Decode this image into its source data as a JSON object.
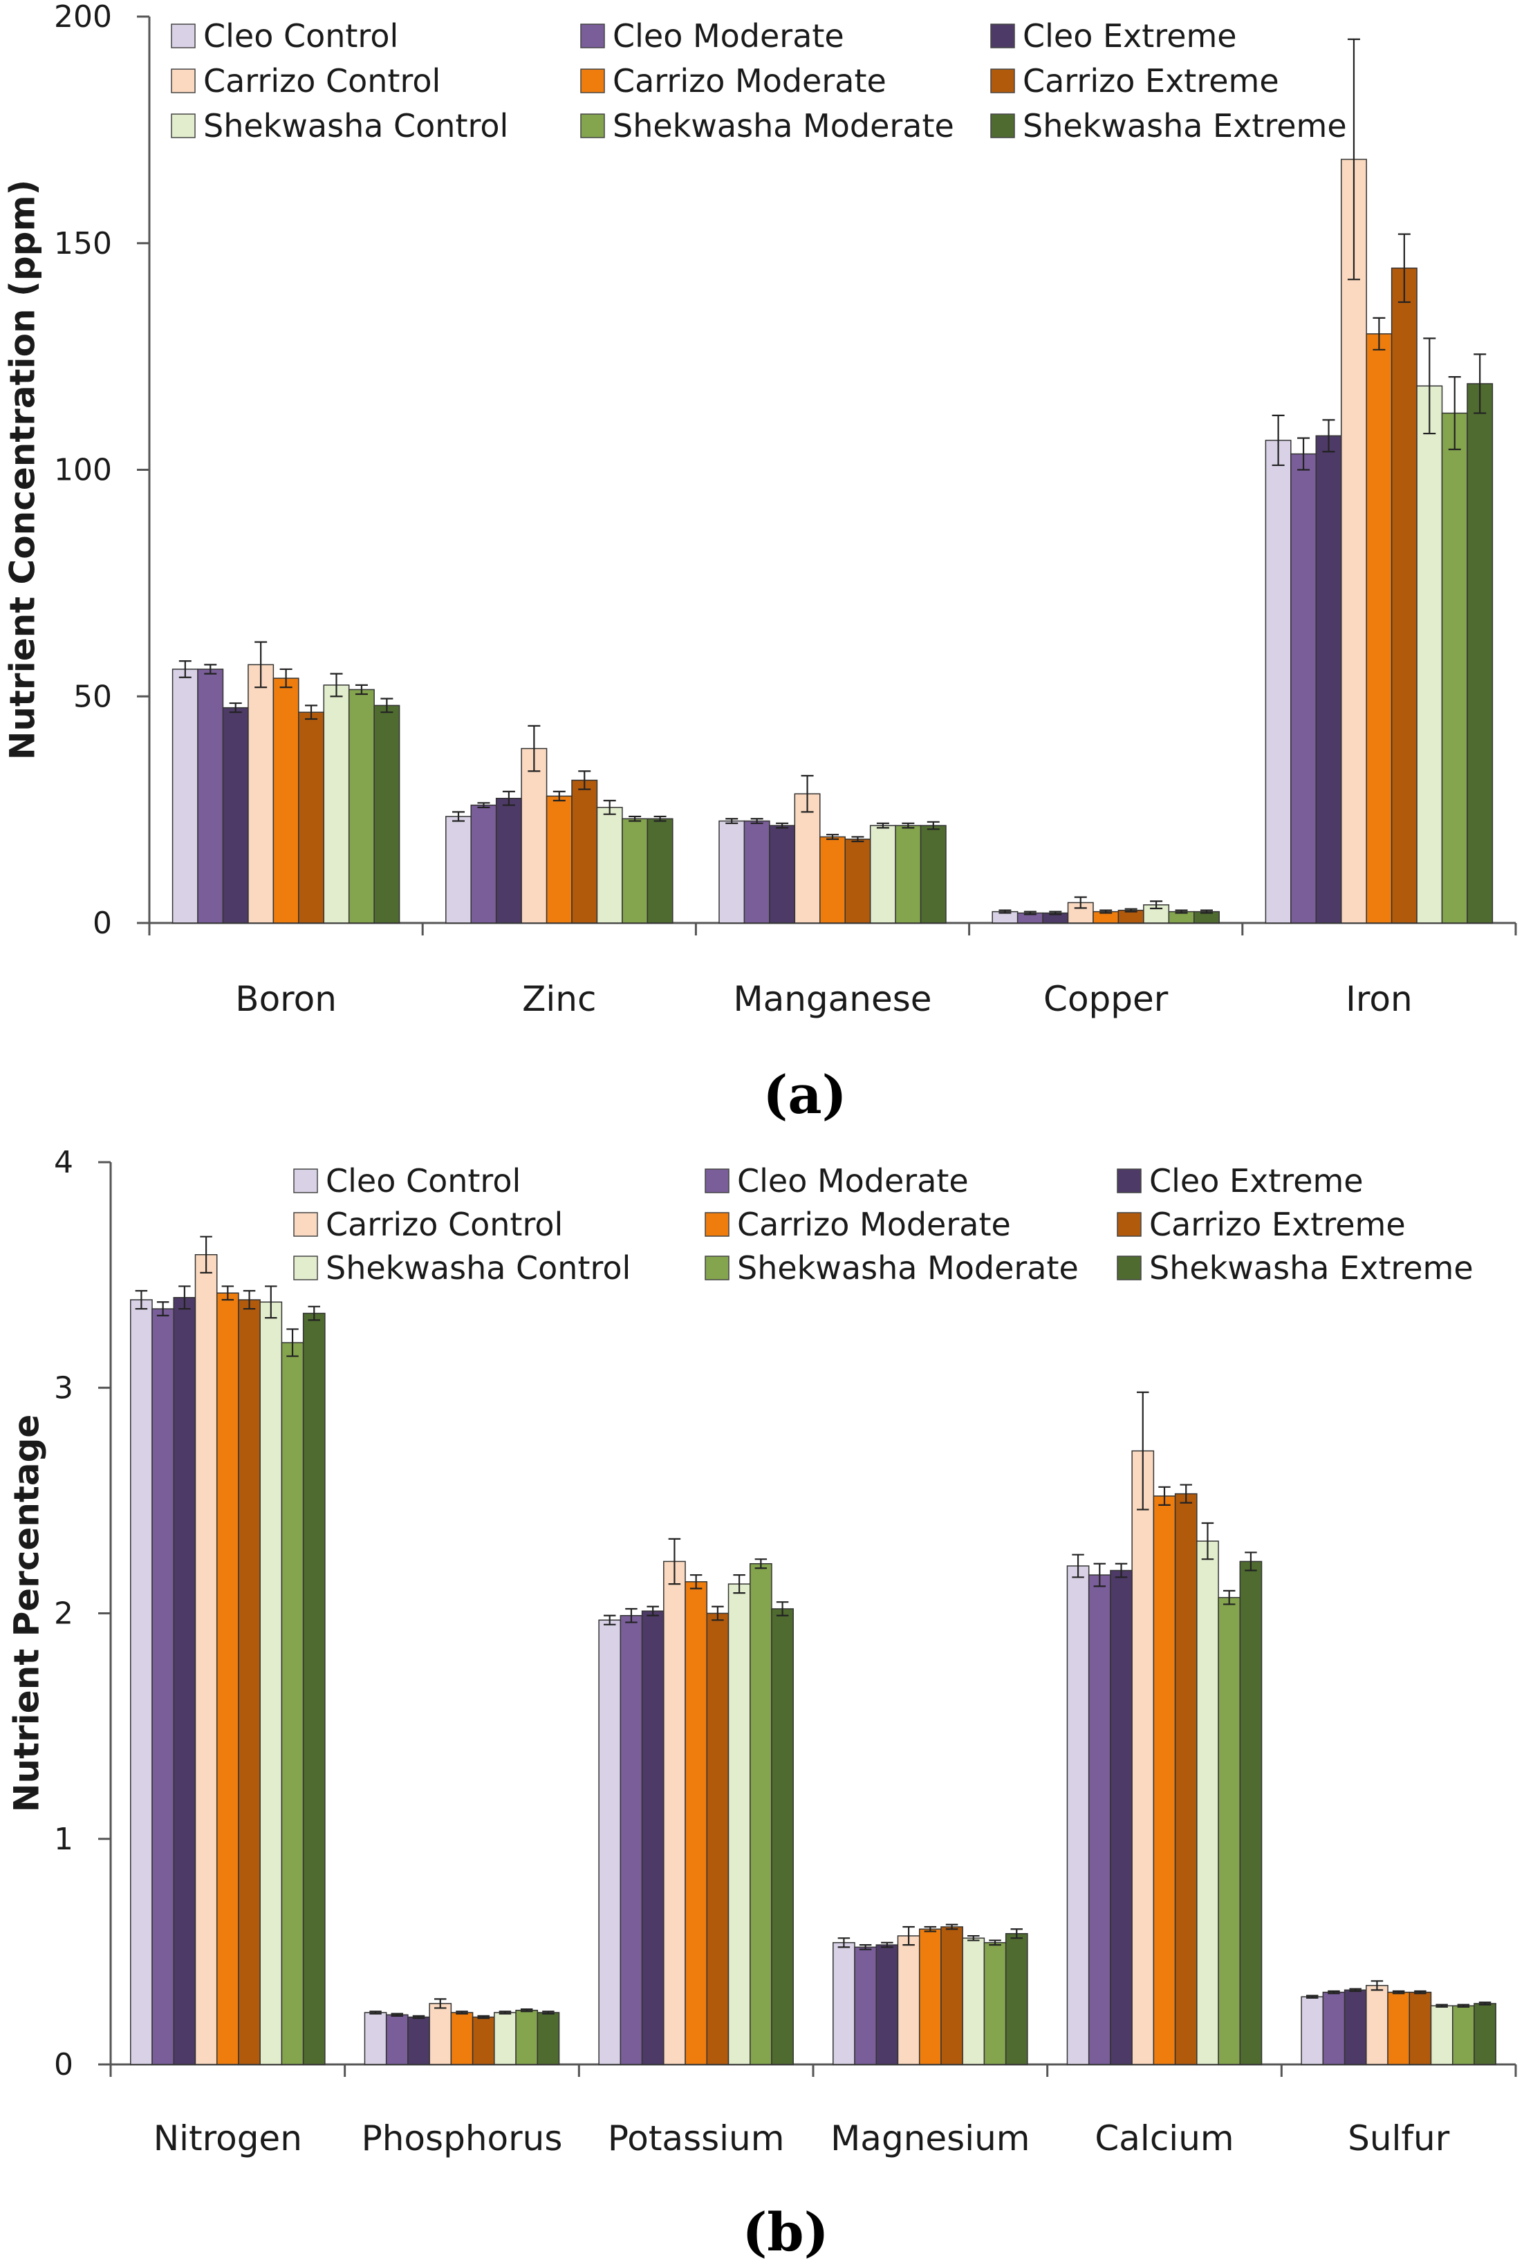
{
  "series_styles": [
    {
      "name": "Cleo Control",
      "color": "#d9d2e6"
    },
    {
      "name": "Cleo Moderate",
      "color": "#7a5e9a"
    },
    {
      "name": "Cleo Extreme",
      "color": "#4d3a66"
    },
    {
      "name": "Carrizo Control",
      "color": "#fad9c0"
    },
    {
      "name": "Carrizo Moderate",
      "color": "#ef7d0e"
    },
    {
      "name": "Carrizo Extreme",
      "color": "#b25a0c"
    },
    {
      "name": "Shekwasha Control",
      "color": "#e2edcd"
    },
    {
      "name": "Shekwasha Moderate",
      "color": "#84a54e"
    },
    {
      "name": "Shekwasha Extreme",
      "color": "#4f6b30"
    }
  ],
  "chart_data": [
    {
      "panel": "(a)",
      "type": "bar",
      "title": "",
      "xlabel": "",
      "ylabel": "Nutrient Concentration (ppm)",
      "ylim": [
        0,
        200
      ],
      "yticks": [
        0,
        50,
        100,
        150,
        200
      ],
      "grid": false,
      "legend": "top",
      "categories": [
        "Boron",
        "Zinc",
        "Manganese",
        "Copper",
        "Iron"
      ],
      "series": [
        {
          "name": "Cleo Control",
          "values": [
            56,
            23.5,
            22.5,
            2.5,
            106.5
          ],
          "errors": [
            1.8,
            1.0,
            0.5,
            0.3,
            5.5
          ]
        },
        {
          "name": "Cleo Moderate",
          "values": [
            56,
            26,
            22.5,
            2.2,
            103.5
          ],
          "errors": [
            1.0,
            0.5,
            0.5,
            0.3,
            3.5
          ]
        },
        {
          "name": "Cleo Extreme",
          "values": [
            47.5,
            27.5,
            21.5,
            2.2,
            107.5
          ],
          "errors": [
            1.0,
            1.5,
            0.5,
            0.3,
            3.5
          ]
        },
        {
          "name": "Carrizo Control",
          "values": [
            57,
            38.5,
            28.5,
            4.5,
            168.5
          ],
          "errors": [
            5.0,
            5.0,
            4.0,
            1.2,
            26.5
          ]
        },
        {
          "name": "Carrizo Moderate",
          "values": [
            54,
            28,
            19,
            2.5,
            130
          ],
          "errors": [
            2.0,
            1.0,
            0.5,
            0.3,
            3.5
          ]
        },
        {
          "name": "Carrizo Extreme",
          "values": [
            46.5,
            31.5,
            18.5,
            2.8,
            144.5
          ],
          "errors": [
            1.5,
            2.0,
            0.5,
            0.3,
            7.5
          ]
        },
        {
          "name": "Shekwasha Control",
          "values": [
            52.5,
            25.5,
            21.5,
            4.0,
            118.5
          ],
          "errors": [
            2.5,
            1.5,
            0.5,
            0.8,
            10.5
          ]
        },
        {
          "name": "Shekwasha Moderate",
          "values": [
            51.5,
            23,
            21.5,
            2.5,
            112.5
          ],
          "errors": [
            1.0,
            0.5,
            0.5,
            0.3,
            8.0
          ]
        },
        {
          "name": "Shekwasha Extreme",
          "values": [
            48,
            23,
            21.5,
            2.5,
            119
          ],
          "errors": [
            1.5,
            0.5,
            0.8,
            0.3,
            6.5
          ]
        }
      ]
    },
    {
      "panel": "(b)",
      "type": "bar",
      "title": "",
      "xlabel": "",
      "ylabel": "Nutrient Percentage",
      "ylim": [
        0,
        4
      ],
      "yticks": [
        0,
        1,
        2,
        3,
        4
      ],
      "grid": false,
      "legend": "top",
      "categories": [
        "Nitrogen",
        "Phosphorus",
        "Potassium",
        "Magnesium",
        "Calcium",
        "Sulfur"
      ],
      "series": [
        {
          "name": "Cleo Control",
          "values": [
            3.39,
            0.23,
            1.97,
            0.54,
            2.21,
            0.3
          ],
          "errors": [
            0.04,
            0.005,
            0.02,
            0.02,
            0.05,
            0.005
          ]
        },
        {
          "name": "Cleo Moderate",
          "values": [
            3.35,
            0.22,
            1.99,
            0.52,
            2.17,
            0.32
          ],
          "errors": [
            0.03,
            0.005,
            0.03,
            0.01,
            0.05,
            0.005
          ]
        },
        {
          "name": "Cleo Extreme",
          "values": [
            3.4,
            0.21,
            2.01,
            0.53,
            2.19,
            0.33
          ],
          "errors": [
            0.05,
            0.005,
            0.02,
            0.01,
            0.03,
            0.005
          ]
        },
        {
          "name": "Carrizo Control",
          "values": [
            3.59,
            0.27,
            2.23,
            0.57,
            2.72,
            0.35
          ],
          "errors": [
            0.08,
            0.02,
            0.1,
            0.04,
            0.26,
            0.02
          ]
        },
        {
          "name": "Carrizo Moderate",
          "values": [
            3.42,
            0.23,
            2.14,
            0.6,
            2.52,
            0.32
          ],
          "errors": [
            0.03,
            0.005,
            0.03,
            0.01,
            0.04,
            0.005
          ]
        },
        {
          "name": "Carrizo Extreme",
          "values": [
            3.39,
            0.21,
            2.0,
            0.61,
            2.53,
            0.32
          ],
          "errors": [
            0.04,
            0.005,
            0.03,
            0.01,
            0.04,
            0.005
          ]
        },
        {
          "name": "Shekwasha Control",
          "values": [
            3.38,
            0.23,
            2.13,
            0.56,
            2.32,
            0.26
          ],
          "errors": [
            0.07,
            0.005,
            0.04,
            0.01,
            0.08,
            0.005
          ]
        },
        {
          "name": "Shekwasha Moderate",
          "values": [
            3.2,
            0.24,
            2.22,
            0.54,
            2.07,
            0.26
          ],
          "errors": [
            0.06,
            0.005,
            0.02,
            0.01,
            0.03,
            0.005
          ]
        },
        {
          "name": "Shekwasha Extreme",
          "values": [
            3.33,
            0.23,
            2.02,
            0.58,
            2.23,
            0.27
          ],
          "errors": [
            0.03,
            0.005,
            0.03,
            0.02,
            0.04,
            0.005
          ]
        }
      ]
    }
  ]
}
